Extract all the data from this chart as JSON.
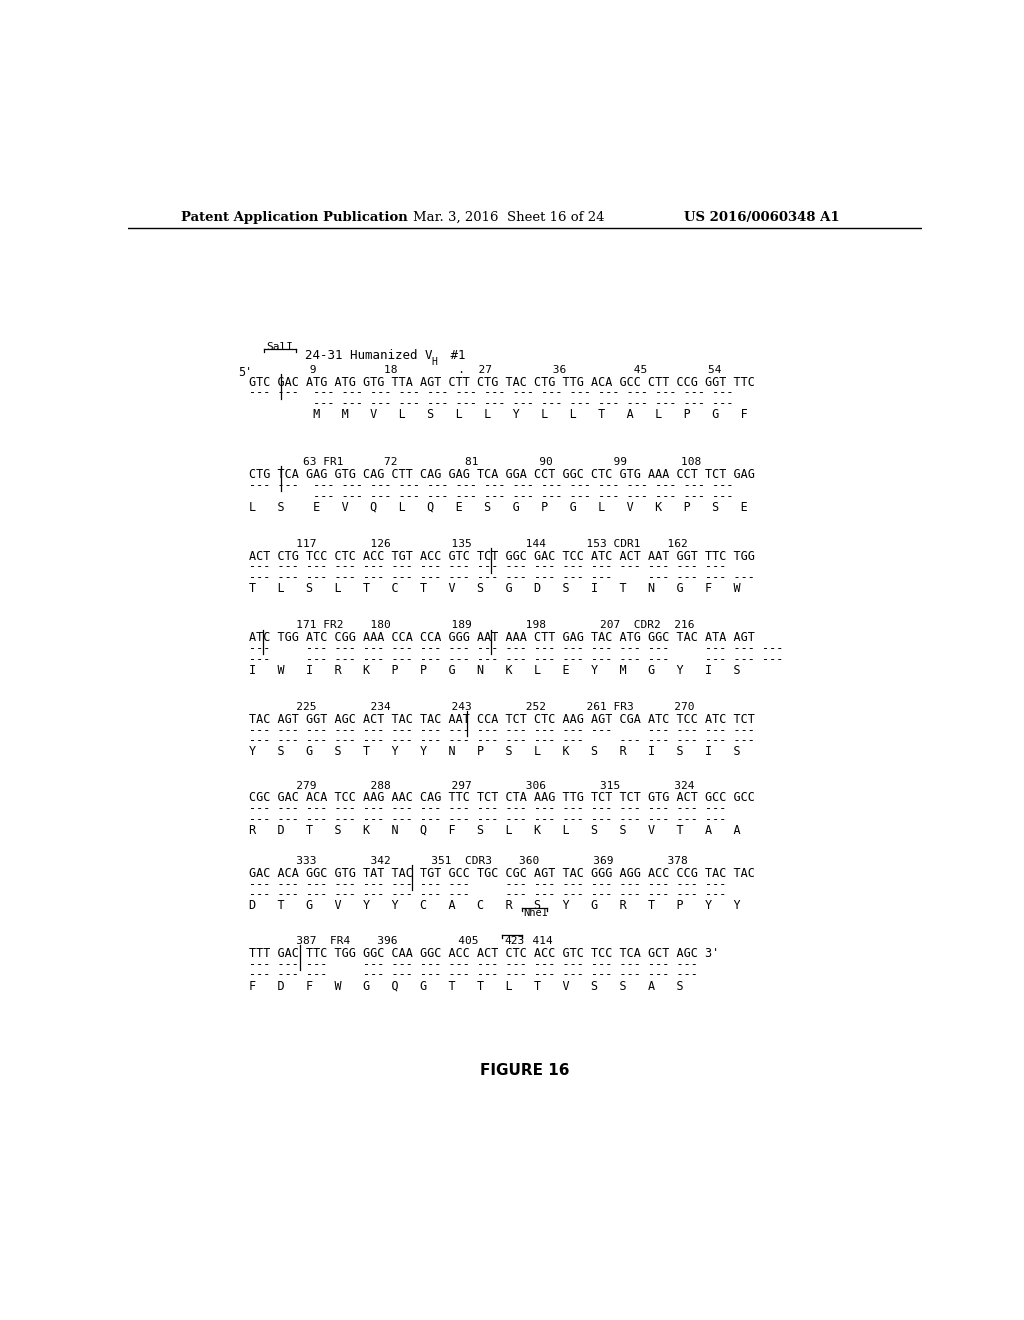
{
  "header_left": "Patent Application Publication",
  "header_mid": "Mar. 3, 2016  Sheet 16 of 24",
  "header_right": "US 2016/0060348 A1",
  "figure_label": "FIGURE 16",
  "background_color": "#ffffff",
  "text_color": "#000000"
}
